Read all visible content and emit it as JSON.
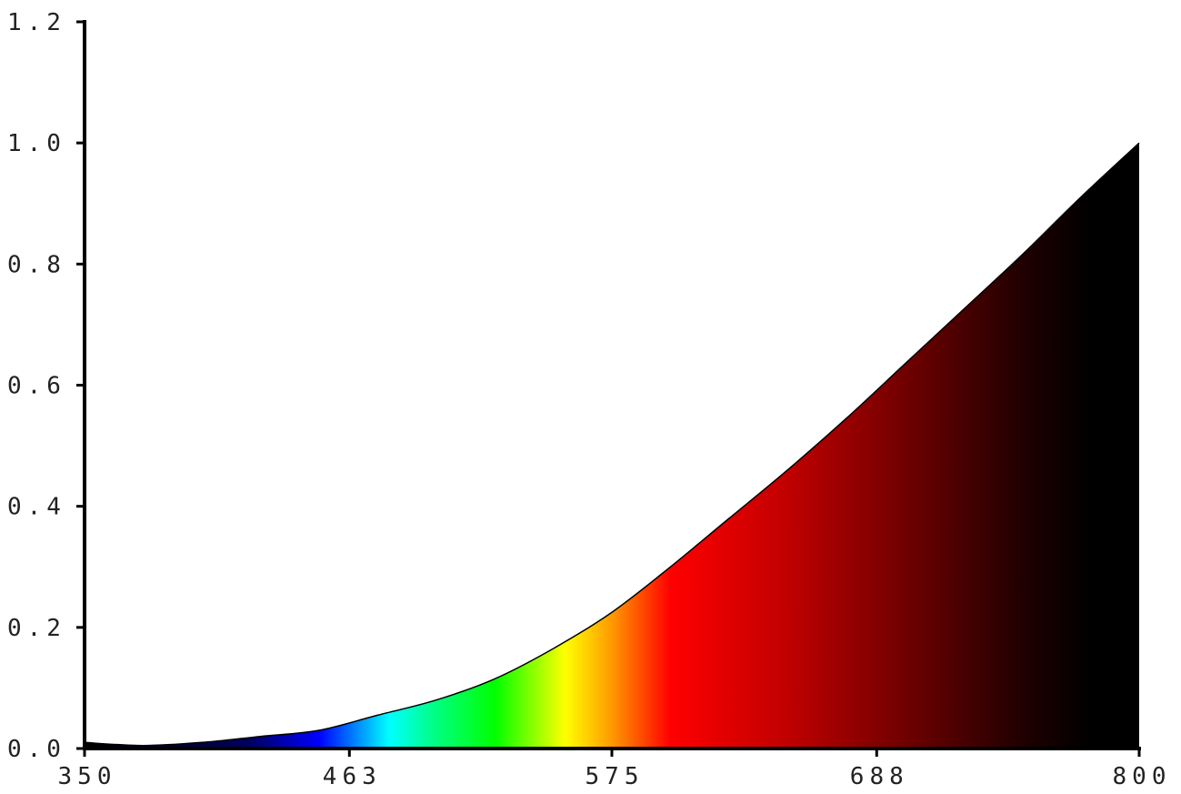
{
  "chart_data": {
    "type": "area",
    "title": "",
    "xlabel": "",
    "ylabel": "",
    "xlim": [
      350,
      800
    ],
    "ylim": [
      0,
      1.2
    ],
    "x_ticks": [
      "350",
      "463",
      "575",
      "688",
      "800"
    ],
    "x_tick_values": [
      350,
      463,
      575,
      688,
      800
    ],
    "y_ticks": [
      "0.0",
      "0.2",
      "0.4",
      "0.6",
      "0.8",
      "1.0",
      "1.2"
    ],
    "y_tick_values": [
      0,
      0.2,
      0.4,
      0.6,
      0.8,
      1.0,
      1.2
    ],
    "grid": false,
    "legend": "none",
    "fill": "wavelength-colored spectrum gradient",
    "series": [
      {
        "x": [
          350,
          375,
          400,
          425,
          450,
          475,
          500,
          525,
          550,
          575,
          600,
          625,
          650,
          675,
          700,
          725,
          750,
          775,
          800
        ],
        "values": [
          0.01,
          0.005,
          0.01,
          0.02,
          0.03,
          0.055,
          0.08,
          0.115,
          0.165,
          0.225,
          0.3,
          0.38,
          0.46,
          0.545,
          0.635,
          0.725,
          0.815,
          0.91,
          1.0
        ]
      }
    ],
    "spectrum_stops": [
      {
        "x": 350,
        "color": "#000000"
      },
      {
        "x": 420,
        "color": "#000060"
      },
      {
        "x": 450,
        "color": "#0000ff"
      },
      {
        "x": 480,
        "color": "#00ffff"
      },
      {
        "x": 500,
        "color": "#00ff80"
      },
      {
        "x": 525,
        "color": "#00ff00"
      },
      {
        "x": 555,
        "color": "#ffff00"
      },
      {
        "x": 575,
        "color": "#ff9900"
      },
      {
        "x": 600,
        "color": "#ff0000"
      },
      {
        "x": 650,
        "color": "#c00000"
      },
      {
        "x": 700,
        "color": "#700000"
      },
      {
        "x": 750,
        "color": "#200000"
      },
      {
        "x": 780,
        "color": "#000000"
      },
      {
        "x": 800,
        "color": "#000000"
      }
    ],
    "axis_color": "#000000"
  }
}
